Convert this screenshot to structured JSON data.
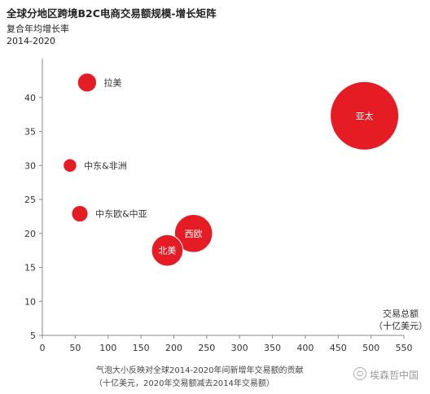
{
  "chart_data": {
    "type": "bubble",
    "title": "全球分地区跨境B2C电商交易额规模-增长矩阵",
    "ylabel": [
      "复合年均增长率",
      "2014-2020"
    ],
    "xlabel": [
      "交易总额",
      "（十亿美元）"
    ],
    "footnote": [
      "气泡大小反映对全球2014-2020年间新增年交易额的贡献",
      "（十亿美元，2020年交易额减去2014年交易额）"
    ],
    "xlim": [
      0,
      550
    ],
    "ylim": [
      5,
      45
    ],
    "xticks": [
      0,
      50,
      100,
      150,
      200,
      250,
      300,
      350,
      400,
      450,
      500,
      550
    ],
    "yticks": [
      5,
      10,
      15,
      20,
      25,
      30,
      35,
      40
    ],
    "grid": false,
    "bubble_color": "#e51c23",
    "points": [
      {
        "label": "拉美",
        "x": 68,
        "y": 42.2,
        "size": 4,
        "label_position": "right"
      },
      {
        "label": "中东&非洲",
        "x": 42,
        "y": 30,
        "size": 2,
        "label_position": "right"
      },
      {
        "label": "中东欧&中亚",
        "x": 57,
        "y": 22.9,
        "size": 3,
        "label_position": "right"
      },
      {
        "label": "西欧",
        "x": 230,
        "y": 20,
        "size": 16,
        "label_position": "inside"
      },
      {
        "label": "北美",
        "x": 190,
        "y": 17.5,
        "size": 11,
        "label_position": "inside"
      },
      {
        "label": "亚太",
        "x": 490,
        "y": 37.3,
        "size": 52,
        "label_position": "inside"
      }
    ]
  },
  "watermark": "埃森哲中国"
}
